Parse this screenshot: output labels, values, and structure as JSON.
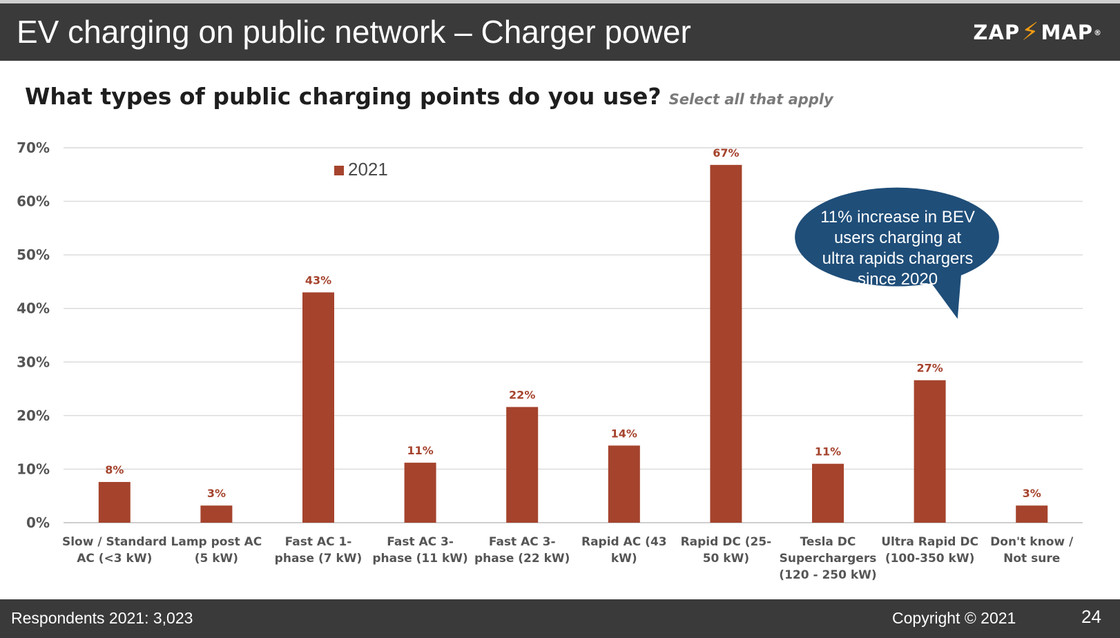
{
  "header": {
    "title": "EV charging on public network – Charger power",
    "logo_left": "ZAP",
    "logo_right": "MAP",
    "logo_reg": "®"
  },
  "question": {
    "text": "What types of public charging points do you use?",
    "subtext": "Select all that apply"
  },
  "annotation": {
    "line1": "11% increase in BEV",
    "line2": "users charging at",
    "line3": "ultra rapids chargers",
    "line4": "since 2020"
  },
  "footer": {
    "respondents": "Respondents 2021: 3,023",
    "copyright": "Copyright © 2021",
    "page": "24"
  },
  "colors": {
    "bar": "#a5432d",
    "data_label": "#a5432d",
    "bubble": "#1f4e79",
    "header_bg": "#3a3a3a",
    "logo_bolt": "#f39c12"
  },
  "chart_data": {
    "type": "bar",
    "categories": [
      [
        "Slow / Standard",
        "AC (<3 kW)"
      ],
      [
        "Lamp post AC",
        "(5 kW)"
      ],
      [
        "Fast AC 1-",
        "phase (7 kW)"
      ],
      [
        "Fast AC 3-",
        "phase (11 kW)"
      ],
      [
        "Fast AC 3-",
        "phase (22 kW)"
      ],
      [
        "Rapid AC (43",
        "kW)"
      ],
      [
        "Rapid DC (25-",
        "50 kW)"
      ],
      [
        "Tesla DC",
        "Superchargers",
        "(120 - 250 kW)"
      ],
      [
        "Ultra Rapid DC",
        "(100-350 kW)"
      ],
      [
        "Don't know /",
        "Not sure"
      ]
    ],
    "series": [
      {
        "name": "2021",
        "values": [
          7.6,
          3.2,
          43,
          11.2,
          21.6,
          14.4,
          66.8,
          11,
          26.6,
          3.2
        ],
        "labels": [
          "8%",
          "3%",
          "43%",
          "11%",
          "22%",
          "14%",
          "67%",
          "11%",
          "27%",
          "3%"
        ]
      }
    ],
    "ylim": [
      0,
      70
    ],
    "yticks": [
      0,
      10,
      20,
      30,
      40,
      50,
      60,
      70
    ],
    "ytick_labels": [
      "0%",
      "10%",
      "20%",
      "30%",
      "40%",
      "50%",
      "60%",
      "70%"
    ],
    "grid": true,
    "legend": "top-center",
    "title": "",
    "xlabel": "",
    "ylabel": ""
  }
}
